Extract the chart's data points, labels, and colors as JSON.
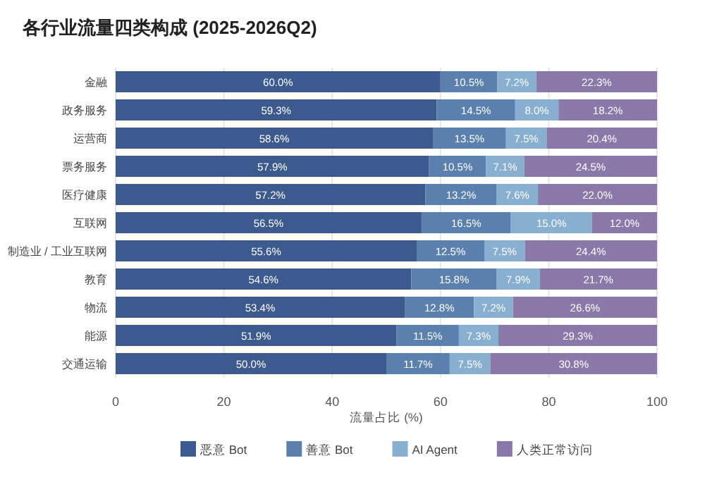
{
  "chart_data": {
    "type": "bar",
    "orientation": "horizontal",
    "stacked": true,
    "title": "各行业流量四类构成 (2025-2026Q2)",
    "xlabel": "流量占比 (%)",
    "categories": [
      "金融",
      "政务服务",
      "运营商",
      "票务服务",
      "医疗健康",
      "互联网",
      "制造业 / 工业互联网",
      "教育",
      "物流",
      "能源",
      "交通运输"
    ],
    "series": [
      {
        "name": "恶意 Bot",
        "color": "#3d5a8e",
        "values": [
          60.0,
          59.3,
          58.6,
          57.9,
          57.2,
          56.5,
          55.6,
          54.6,
          53.4,
          51.9,
          50.0
        ],
        "value_labels": [
          "60.0%",
          "59.3%",
          "58.6%",
          "57.9%",
          "57.2%",
          "56.5%",
          "55.6%",
          "54.6%",
          "53.4%",
          "51.9%",
          "50.0%"
        ]
      },
      {
        "name": "善意 Bot",
        "color": "#5b80ae",
        "values": [
          10.5,
          14.5,
          13.5,
          10.5,
          13.2,
          16.5,
          12.5,
          15.8,
          12.8,
          11.5,
          11.7
        ],
        "value_labels": [
          "10.5%",
          "14.5%",
          "13.5%",
          "10.5%",
          "13.2%",
          "16.5%",
          "12.5%",
          "15.8%",
          "12.8%",
          "11.5%",
          "11.7%"
        ]
      },
      {
        "name": "AI Agent",
        "color": "#88aed0",
        "values": [
          7.2,
          8.0,
          7.5,
          7.1,
          7.6,
          15.0,
          7.5,
          7.9,
          7.2,
          7.3,
          7.5
        ],
        "value_labels": [
          "7.2%",
          "8.0%",
          "7.5%",
          "7.1%",
          "7.6%",
          "15.0%",
          "7.5%",
          "7.9%",
          "7.2%",
          "7.3%",
          "7.5%"
        ]
      },
      {
        "name": "人类正常访问",
        "color": "#8a78a8",
        "values": [
          22.3,
          18.2,
          20.4,
          24.5,
          22.0,
          12.0,
          24.4,
          21.7,
          26.6,
          29.3,
          30.8
        ],
        "value_labels": [
          "22.3%",
          "18.2%",
          "20.4%",
          "24.5%",
          "22.0%",
          "12.0%",
          "24.4%",
          "21.7%",
          "26.6%",
          "29.3%",
          "30.8%"
        ]
      }
    ],
    "xlim": [
      0,
      100
    ],
    "xticks": [
      0,
      20,
      40,
      60,
      80,
      100
    ],
    "grid": "x",
    "legend": "bottom"
  }
}
